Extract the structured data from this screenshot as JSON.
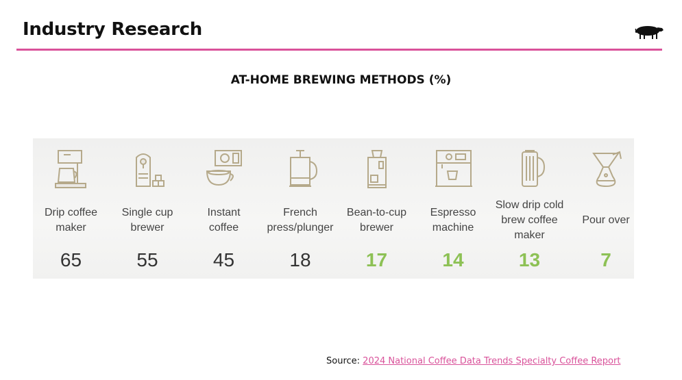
{
  "header": {
    "title": "Industry Research"
  },
  "chart_data": {
    "type": "table",
    "title": "AT-HOME BREWING METHODS (%)",
    "categories": [
      "Drip coffee maker",
      "Single cup brewer",
      "Instant coffee",
      "French press/plunger",
      "Bean-to-cup brewer",
      "Espresso machine",
      "Slow drip cold brew coffee maker",
      "Pour over"
    ],
    "values": [
      65,
      55,
      45,
      18,
      17,
      14,
      13,
      7
    ],
    "items": [
      {
        "label_lines": [
          "Drip coffee",
          "maker"
        ],
        "value": "65",
        "highlight": false,
        "icon": "drip-coffee-maker-icon"
      },
      {
        "label_lines": [
          "Single cup",
          "brewer"
        ],
        "value": "55",
        "highlight": false,
        "icon": "single-cup-brewer-icon"
      },
      {
        "label_lines": [
          "Instant",
          "coffee"
        ],
        "value": "45",
        "highlight": false,
        "icon": "instant-coffee-icon"
      },
      {
        "label_lines": [
          "French",
          "press/plunger"
        ],
        "value": "18",
        "highlight": false,
        "icon": "french-press-icon"
      },
      {
        "label_lines": [
          "Bean-to-cup",
          "brewer"
        ],
        "value": "17",
        "highlight": true,
        "icon": "bean-to-cup-brewer-icon"
      },
      {
        "label_lines": [
          "Espresso",
          "machine"
        ],
        "value": "14",
        "highlight": true,
        "icon": "espresso-machine-icon"
      },
      {
        "label_lines": [
          "Slow drip cold",
          "brew coffee",
          "maker"
        ],
        "value": "13",
        "highlight": true,
        "icon": "cold-brew-maker-icon"
      },
      {
        "label_lines": [
          "Pour over"
        ],
        "value": "7",
        "highlight": true,
        "icon": "pour-over-icon"
      }
    ]
  },
  "colors": {
    "accent": "#d9529a",
    "highlight_value": "#8dc155",
    "normal_value": "#333333",
    "icon_stroke": "#b5a98a"
  },
  "source": {
    "prefix": "Source: ",
    "link_text": "2024 National Coffee Data Trends Specialty Coffee Report"
  }
}
